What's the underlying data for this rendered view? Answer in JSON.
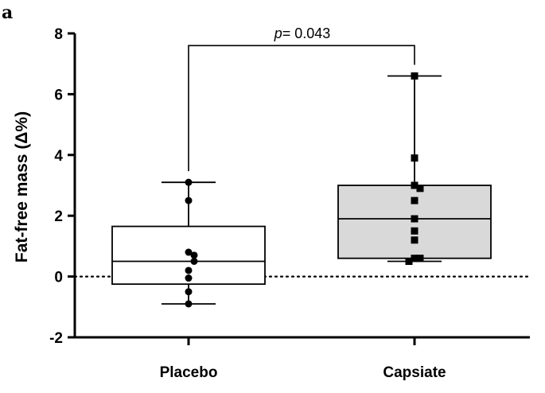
{
  "panel_label": "a",
  "chart_data": {
    "type": "box",
    "ylabel": "Fat-free mass (Δ%)",
    "ylim": [
      -2,
      8
    ],
    "yticks": [
      -2,
      0,
      2,
      4,
      6,
      8
    ],
    "reference_line": {
      "y": 0,
      "style": "dotted"
    },
    "categories": [
      "Placebo",
      "Capsiate"
    ],
    "groups": [
      {
        "name": "Placebo",
        "box_fill": "#ffffff",
        "marker": "circle",
        "min": -0.9,
        "q1": -0.25,
        "median": 0.5,
        "q3": 1.65,
        "max": 3.1,
        "points": [
          3.1,
          2.5,
          0.8,
          0.7,
          0.5,
          0.2,
          -0.05,
          -0.5,
          -0.9
        ]
      },
      {
        "name": "Capsiate",
        "box_fill": "#d9d9d9",
        "marker": "square",
        "min": 0.5,
        "q1": 0.6,
        "median": 1.9,
        "q3": 3.0,
        "max": 6.6,
        "points": [
          6.6,
          3.9,
          3.0,
          2.9,
          2.5,
          1.9,
          1.5,
          1.2,
          0.6,
          0.6,
          0.5
        ]
      }
    ],
    "significance": {
      "p_label": "p",
      "p_value": "= 0.043",
      "y": 7.6
    }
  }
}
